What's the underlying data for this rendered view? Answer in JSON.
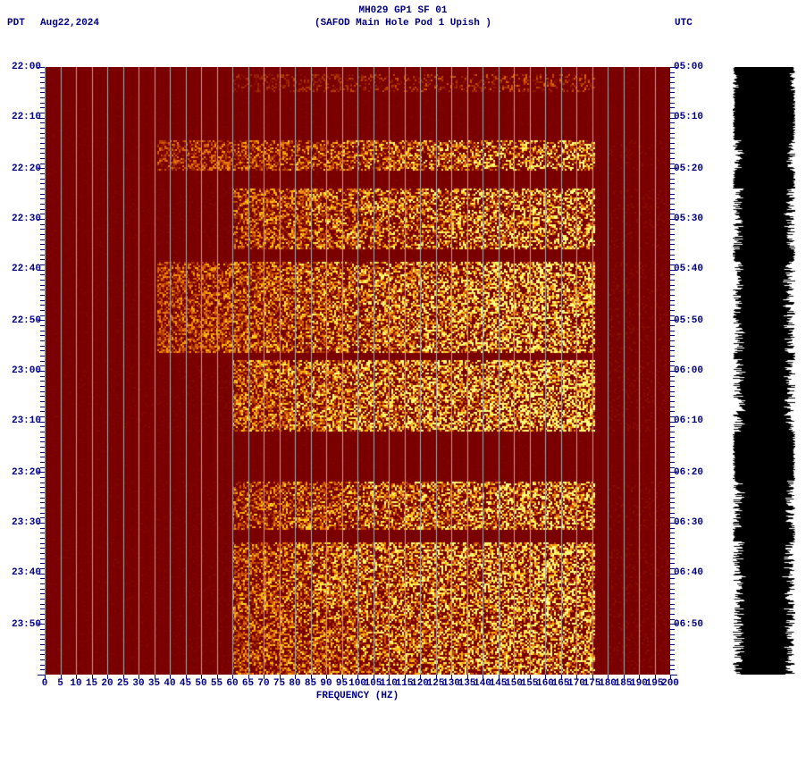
{
  "header": {
    "title_line1": "MH029 GP1 SF 01",
    "title_line2": "(SAFOD Main Hole Pod 1 Upish )",
    "left_tz": "PDT",
    "date": "Aug22,2024",
    "right_tz": "UTC"
  },
  "chart": {
    "type": "spectrogram",
    "background_color": "#7a0000",
    "grid_color": "#a8a8a8",
    "text_color": "#000080",
    "font_family": "Courier New",
    "font_size_pt": 8,
    "xlim": [
      0,
      200
    ],
    "x_tick_step": 5,
    "x_label": "FREQUENCY (HZ)",
    "y_ticks_left": [
      "22:00",
      "22:10",
      "22:20",
      "22:30",
      "22:40",
      "22:50",
      "23:00",
      "23:10",
      "23:20",
      "23:30",
      "23:40",
      "23:50"
    ],
    "y_ticks_right": [
      "05:00",
      "05:10",
      "05:20",
      "05:30",
      "05:40",
      "05:50",
      "06:00",
      "06:10",
      "06:20",
      "06:30",
      "06:40",
      "06:50"
    ],
    "y_tick_positions_pct": [
      0,
      8.3,
      16.7,
      25,
      33.3,
      41.7,
      50,
      58.3,
      66.7,
      75,
      83.3,
      91.7
    ],
    "minor_y_per_major": 10,
    "colormap": [
      "#7a0000",
      "#8c1400",
      "#a83200",
      "#cf5000",
      "#e87818",
      "#ffb400",
      "#ffe040",
      "#ffff80"
    ],
    "activity_bands": [
      {
        "t0": 0.01,
        "t1": 0.04,
        "f0": 0.3,
        "f1": 0.88,
        "intensity": 0.3
      },
      {
        "t0": 0.12,
        "t1": 0.17,
        "f0": 0.18,
        "f1": 0.88,
        "intensity": 0.7
      },
      {
        "t0": 0.12,
        "t1": 0.17,
        "f0": 0.9,
        "f1": 1.0,
        "intensity": 0.7
      },
      {
        "t0": 0.2,
        "t1": 0.3,
        "f0": 0.3,
        "f1": 0.88,
        "intensity": 0.75
      },
      {
        "t0": 0.2,
        "t1": 0.3,
        "f0": 0.9,
        "f1": 1.0,
        "intensity": 0.75
      },
      {
        "t0": 0.32,
        "t1": 0.47,
        "f0": 0.18,
        "f1": 0.88,
        "intensity": 0.8
      },
      {
        "t0": 0.32,
        "t1": 0.47,
        "f0": 0.9,
        "f1": 1.0,
        "intensity": 0.8
      },
      {
        "t0": 0.48,
        "t1": 0.6,
        "f0": 0.3,
        "f1": 0.88,
        "intensity": 0.85
      },
      {
        "t0": 0.48,
        "t1": 0.6,
        "f0": 0.9,
        "f1": 1.0,
        "intensity": 0.8
      },
      {
        "t0": 0.68,
        "t1": 0.76,
        "f0": 0.3,
        "f1": 0.88,
        "intensity": 0.75
      },
      {
        "t0": 0.68,
        "t1": 0.76,
        "f0": 0.9,
        "f1": 1.0,
        "intensity": 0.7
      },
      {
        "t0": 0.78,
        "t1": 0.9,
        "f0": 0.3,
        "f1": 0.88,
        "intensity": 0.8
      },
      {
        "t0": 0.78,
        "t1": 0.9,
        "f0": 0.9,
        "f1": 1.0,
        "intensity": 0.78
      },
      {
        "t0": 0.9,
        "t1": 1.0,
        "f0": 0.3,
        "f1": 0.88,
        "intensity": 0.75
      },
      {
        "t0": 0.9,
        "t1": 1.0,
        "f0": 0.9,
        "f1": 1.0,
        "intensity": 0.72
      }
    ],
    "quiet_freq_gap": {
      "f0": 0.88,
      "f1": 0.9
    }
  },
  "side_waveform": {
    "background_color": "#000000",
    "spike_color": "#ffffff",
    "page_background": "#ffffff"
  }
}
